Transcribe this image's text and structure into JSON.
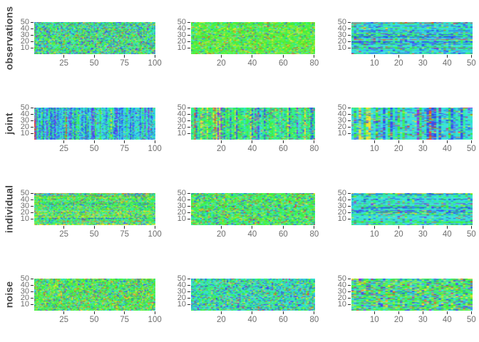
{
  "figure": {
    "background_color": "#ffffff",
    "tick_mark_color": "#2e2e2e",
    "tick_label_color": "#6e6e6e",
    "row_label_color": "#474747"
  },
  "chart_data": {
    "type": "heatmap",
    "title": "",
    "layout": "4 rows x 3 columns grid of random-noise heatmap matrices (JIVE-style decomposition: observations / joint / individual / noise for three data blocks)",
    "colormap": "rainbow (green-cyan dominant with blue, yellow, red, purple speckles)",
    "grid": true,
    "legend": "none",
    "row_labels": [
      "observations",
      "joint",
      "individual",
      "noise"
    ],
    "y_axis_range": [
      1,
      50
    ],
    "panels": [
      {
        "name": "observations-1",
        "row_label": "observations",
        "cols": 100,
        "rows": 50,
        "x_ticks": [
          25,
          50,
          75,
          100
        ],
        "y_ticks": [
          10,
          20,
          30,
          40,
          50
        ],
        "structure": {
          "type": "none",
          "strength": 0
        },
        "seed": 101,
        "palette": [
          {
            "color": "#3cf03c",
            "weight": 0.3
          },
          {
            "color": "#38dede",
            "weight": 0.26
          },
          {
            "color": "#2df2a0",
            "weight": 0.12
          },
          {
            "color": "#2d4df0",
            "weight": 0.12
          },
          {
            "color": "#9fe42c",
            "weight": 0.08
          },
          {
            "color": "#f0e22d",
            "weight": 0.05
          },
          {
            "color": "#f0482a",
            "weight": 0.03
          },
          {
            "color": "#8c2af0",
            "weight": 0.04
          }
        ]
      },
      {
        "name": "observations-2",
        "row_label": "observations",
        "cols": 80,
        "rows": 50,
        "x_ticks": [
          20,
          40,
          60,
          80
        ],
        "y_ticks": [
          10,
          20,
          30,
          40,
          50
        ],
        "structure": {
          "type": "none",
          "strength": 0
        },
        "seed": 102,
        "palette": [
          {
            "color": "#3cf03c",
            "weight": 0.4
          },
          {
            "color": "#63f02d",
            "weight": 0.16
          },
          {
            "color": "#9fe42c",
            "weight": 0.14
          },
          {
            "color": "#38dede",
            "weight": 0.1
          },
          {
            "color": "#f0e22d",
            "weight": 0.08
          },
          {
            "color": "#2df2a0",
            "weight": 0.06
          },
          {
            "color": "#2d4df0",
            "weight": 0.03
          },
          {
            "color": "#f0482a",
            "weight": 0.03
          }
        ]
      },
      {
        "name": "observations-3",
        "row_label": "observations",
        "cols": 50,
        "rows": 50,
        "x_ticks": [
          10,
          20,
          30,
          40,
          50
        ],
        "y_ticks": [
          10,
          20,
          30,
          40,
          50
        ],
        "structure": {
          "type": "horizontal",
          "strength": 0.5
        },
        "seed": 103,
        "palette": [
          {
            "color": "#38dede",
            "weight": 0.34
          },
          {
            "color": "#30b6f0",
            "weight": 0.12
          },
          {
            "color": "#2d4df0",
            "weight": 0.16
          },
          {
            "color": "#3cf03c",
            "weight": 0.16
          },
          {
            "color": "#2df2a0",
            "weight": 0.12
          },
          {
            "color": "#8c2af0",
            "weight": 0.04
          },
          {
            "color": "#f0482a",
            "weight": 0.03
          },
          {
            "color": "#f0e22d",
            "weight": 0.03
          }
        ]
      },
      {
        "name": "joint-1",
        "row_label": "joint",
        "cols": 100,
        "rows": 50,
        "x_ticks": [
          25,
          50,
          75,
          100
        ],
        "y_ticks": [
          10,
          20,
          30,
          40,
          50
        ],
        "structure": {
          "type": "vertical",
          "strength": 0.5
        },
        "seed": 104,
        "palette": [
          {
            "color": "#38dede",
            "weight": 0.4
          },
          {
            "color": "#2d4df0",
            "weight": 0.22
          },
          {
            "color": "#30b6f0",
            "weight": 0.1
          },
          {
            "color": "#3cf03c",
            "weight": 0.14
          },
          {
            "color": "#2df2a0",
            "weight": 0.08
          },
          {
            "color": "#8c2af0",
            "weight": 0.03
          },
          {
            "color": "#f0e22d",
            "weight": 0.02
          },
          {
            "color": "#f0482a",
            "weight": 0.01
          }
        ]
      },
      {
        "name": "joint-2",
        "row_label": "joint",
        "cols": 80,
        "rows": 50,
        "x_ticks": [
          20,
          40,
          60,
          80
        ],
        "y_ticks": [
          10,
          20,
          30,
          40,
          50
        ],
        "structure": {
          "type": "vertical",
          "strength": 0.45
        },
        "seed": 105,
        "palette": [
          {
            "color": "#2df28c",
            "weight": 0.34
          },
          {
            "color": "#3cf03c",
            "weight": 0.26
          },
          {
            "color": "#38dede",
            "weight": 0.14
          },
          {
            "color": "#2d4df0",
            "weight": 0.1
          },
          {
            "color": "#f0e22d",
            "weight": 0.08
          },
          {
            "color": "#f0482a",
            "weight": 0.04
          },
          {
            "color": "#8c2af0",
            "weight": 0.04
          }
        ]
      },
      {
        "name": "joint-3",
        "row_label": "joint",
        "cols": 50,
        "rows": 50,
        "x_ticks": [
          10,
          20,
          30,
          40,
          50
        ],
        "y_ticks": [
          10,
          20,
          30,
          40,
          50
        ],
        "structure": {
          "type": "vertical",
          "strength": 0.55
        },
        "seed": 106,
        "palette": [
          {
            "color": "#38dede",
            "weight": 0.38
          },
          {
            "color": "#2d4df0",
            "weight": 0.18
          },
          {
            "color": "#3cf03c",
            "weight": 0.12
          },
          {
            "color": "#2df2a0",
            "weight": 0.08
          },
          {
            "color": "#f0e22d",
            "weight": 0.07
          },
          {
            "color": "#f0482a",
            "weight": 0.07
          },
          {
            "color": "#8c2af0",
            "weight": 0.06
          },
          {
            "color": "#30b6f0",
            "weight": 0.04
          }
        ]
      },
      {
        "name": "individual-1",
        "row_label": "individual",
        "cols": 100,
        "rows": 50,
        "x_ticks": [
          25,
          50,
          75,
          100
        ],
        "y_ticks": [
          10,
          20,
          30,
          40,
          50
        ],
        "structure": {
          "type": "horizontal",
          "strength": 0.35
        },
        "seed": 107,
        "palette": [
          {
            "color": "#3cf03c",
            "weight": 0.34
          },
          {
            "color": "#38dede",
            "weight": 0.2
          },
          {
            "color": "#2df2a0",
            "weight": 0.12
          },
          {
            "color": "#2d4df0",
            "weight": 0.1
          },
          {
            "color": "#9fe42c",
            "weight": 0.09
          },
          {
            "color": "#f0e22d",
            "weight": 0.08
          },
          {
            "color": "#f0882a",
            "weight": 0.04
          },
          {
            "color": "#f0482a",
            "weight": 0.03
          }
        ]
      },
      {
        "name": "individual-2",
        "row_label": "individual",
        "cols": 80,
        "rows": 50,
        "x_ticks": [
          20,
          40,
          60,
          80
        ],
        "y_ticks": [
          10,
          20,
          30,
          40,
          50
        ],
        "structure": {
          "type": "none",
          "strength": 0
        },
        "seed": 108,
        "palette": [
          {
            "color": "#3cf03c",
            "weight": 0.4
          },
          {
            "color": "#2df28c",
            "weight": 0.16
          },
          {
            "color": "#38dede",
            "weight": 0.16
          },
          {
            "color": "#9fe42c",
            "weight": 0.08
          },
          {
            "color": "#2d4df0",
            "weight": 0.08
          },
          {
            "color": "#f0e22d",
            "weight": 0.06
          },
          {
            "color": "#f0482a",
            "weight": 0.06
          }
        ]
      },
      {
        "name": "individual-3",
        "row_label": "individual",
        "cols": 50,
        "rows": 50,
        "x_ticks": [
          10,
          20,
          30,
          40,
          50
        ],
        "y_ticks": [
          10,
          20,
          30,
          40,
          50
        ],
        "structure": {
          "type": "horizontal",
          "strength": 0.5
        },
        "seed": 109,
        "palette": [
          {
            "color": "#38dede",
            "weight": 0.42
          },
          {
            "color": "#2df2a0",
            "weight": 0.14
          },
          {
            "color": "#3cf03c",
            "weight": 0.16
          },
          {
            "color": "#2d4df0",
            "weight": 0.12
          },
          {
            "color": "#30b6f0",
            "weight": 0.06
          },
          {
            "color": "#f0e22d",
            "weight": 0.04
          },
          {
            "color": "#8c2af0",
            "weight": 0.03
          },
          {
            "color": "#f0482a",
            "weight": 0.03
          }
        ]
      },
      {
        "name": "noise-1",
        "row_label": "noise",
        "cols": 100,
        "rows": 50,
        "x_ticks": [
          25,
          50,
          75,
          100
        ],
        "y_ticks": [
          10,
          20,
          30,
          40,
          50
        ],
        "structure": {
          "type": "none",
          "strength": 0
        },
        "seed": 110,
        "palette": [
          {
            "color": "#3cf03c",
            "weight": 0.36
          },
          {
            "color": "#63f02d",
            "weight": 0.14
          },
          {
            "color": "#38dede",
            "weight": 0.16
          },
          {
            "color": "#f0e22d",
            "weight": 0.1
          },
          {
            "color": "#2df2a0",
            "weight": 0.08
          },
          {
            "color": "#2d4df0",
            "weight": 0.08
          },
          {
            "color": "#f0482a",
            "weight": 0.04
          },
          {
            "color": "#f0882a",
            "weight": 0.04
          }
        ]
      },
      {
        "name": "noise-2",
        "row_label": "noise",
        "cols": 80,
        "rows": 50,
        "x_ticks": [
          20,
          40,
          60,
          80
        ],
        "y_ticks": [
          10,
          20,
          30,
          40,
          50
        ],
        "structure": {
          "type": "none",
          "strength": 0
        },
        "seed": 111,
        "palette": [
          {
            "color": "#38dede",
            "weight": 0.3
          },
          {
            "color": "#2df2a0",
            "weight": 0.18
          },
          {
            "color": "#3cf03c",
            "weight": 0.24
          },
          {
            "color": "#2d4df0",
            "weight": 0.12
          },
          {
            "color": "#30b6f0",
            "weight": 0.06
          },
          {
            "color": "#f0e22d",
            "weight": 0.05
          },
          {
            "color": "#f0482a",
            "weight": 0.03
          },
          {
            "color": "#8c2af0",
            "weight": 0.02
          }
        ]
      },
      {
        "name": "noise-3",
        "row_label": "noise",
        "cols": 50,
        "rows": 50,
        "x_ticks": [
          10,
          20,
          30,
          40,
          50
        ],
        "y_ticks": [
          10,
          20,
          30,
          40,
          50
        ],
        "structure": {
          "type": "none",
          "strength": 0
        },
        "seed": 112,
        "palette": [
          {
            "color": "#3cf03c",
            "weight": 0.32
          },
          {
            "color": "#38dede",
            "weight": 0.22
          },
          {
            "color": "#2df2a0",
            "weight": 0.12
          },
          {
            "color": "#f0e22d",
            "weight": 0.1
          },
          {
            "color": "#2d4df0",
            "weight": 0.1
          },
          {
            "color": "#9fe42c",
            "weight": 0.06
          },
          {
            "color": "#8c2af0",
            "weight": 0.04
          },
          {
            "color": "#f0482a",
            "weight": 0.04
          }
        ]
      }
    ]
  }
}
